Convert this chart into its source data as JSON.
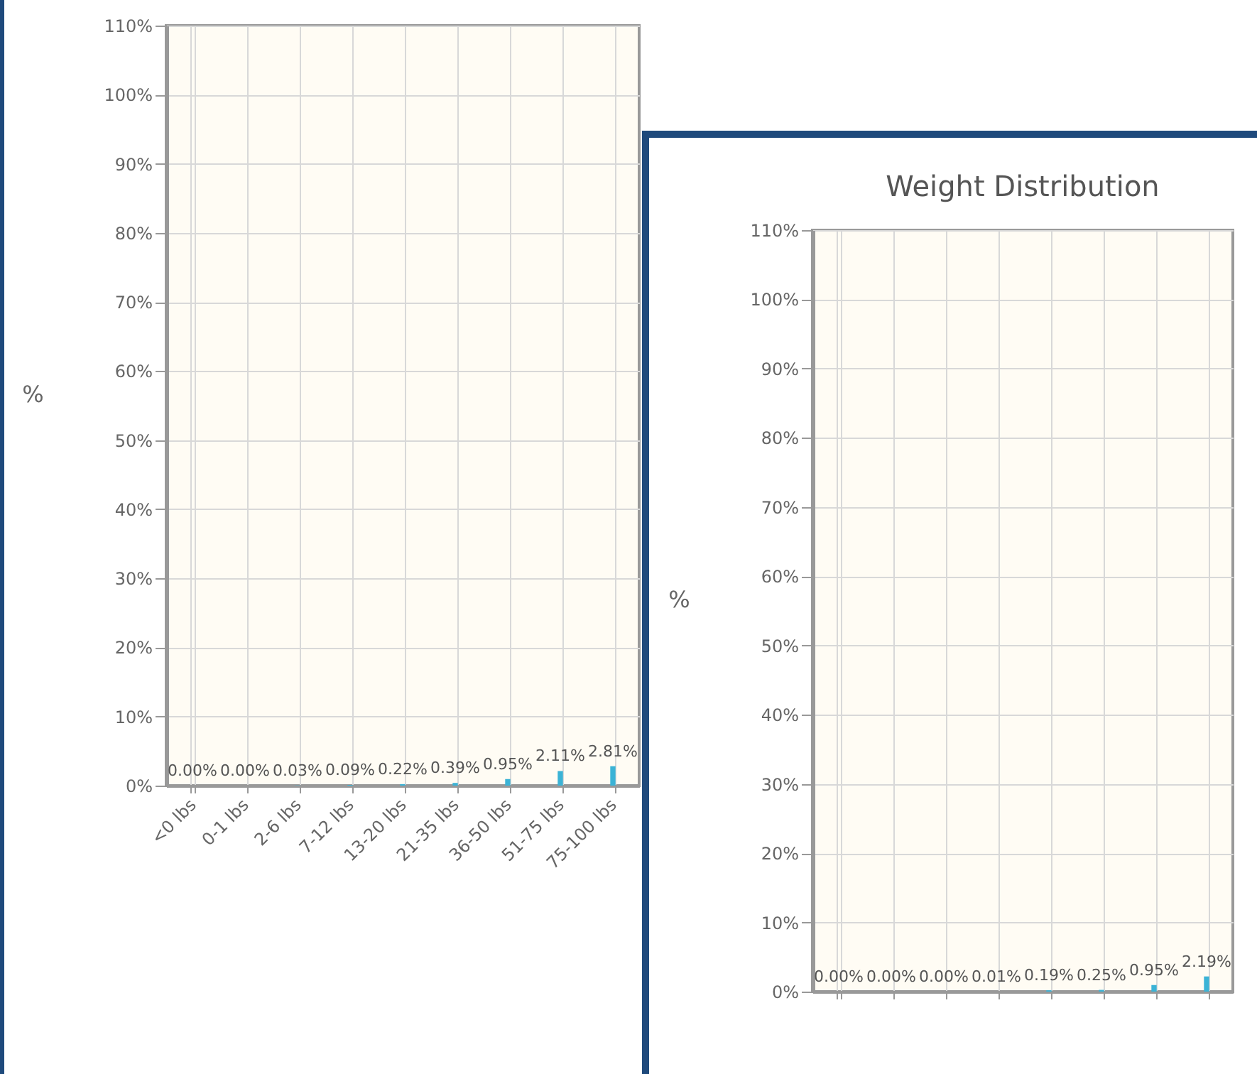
{
  "chart_data": [
    {
      "type": "bar",
      "ylabel": "%",
      "categories": [
        "<0 lbs",
        "0-1 lbs",
        "2-6 lbs",
        "7-12 lbs",
        "13-20 lbs",
        "21-35 lbs",
        "36-50 lbs",
        "51-75 lbs",
        "75-100 lbs"
      ],
      "values": [
        0,
        0,
        0.03,
        0.09,
        0.22,
        0.39,
        0.95,
        2.11,
        2.81
      ],
      "value_labels": [
        "0.00%",
        "0.00%",
        "0.03%",
        "0.09%",
        "0.22%",
        "0.39%",
        "0.95%",
        "2.11%",
        "2.81%"
      ],
      "color": "#3bb3d6",
      "ylim": [
        0,
        110
      ],
      "yticks": [
        {
          "value": 0,
          "label": "0%"
        },
        {
          "value": 10,
          "label": "10%"
        },
        {
          "value": 20,
          "label": "20%"
        },
        {
          "value": 30,
          "label": "30%"
        },
        {
          "value": 40,
          "label": "40%"
        },
        {
          "value": 50,
          "label": "50%"
        },
        {
          "value": 60,
          "label": "60%"
        },
        {
          "value": 70,
          "label": "70%"
        },
        {
          "value": 80,
          "label": "80%"
        },
        {
          "value": 90,
          "label": "90%"
        },
        {
          "value": 100,
          "label": "100%"
        },
        {
          "value": 110,
          "label": "110%"
        }
      ],
      "grid": true
    },
    {
      "type": "bar",
      "title": "Weight Distribution",
      "ylabel": "%",
      "categories": [
        null,
        null,
        null,
        null,
        null,
        null,
        null,
        null
      ],
      "values": [
        0,
        0,
        0,
        0.01,
        0.19,
        0.25,
        0.95,
        2.19
      ],
      "value_labels": [
        "0.00%",
        "0.00%",
        "0.00%",
        "0.01%",
        "0.19%",
        "0.25%",
        "0.95%",
        "2.19%"
      ],
      "color": "#3bb3d6",
      "ylim": [
        0,
        110
      ],
      "yticks": [
        {
          "value": 0,
          "label": "0%"
        },
        {
          "value": 10,
          "label": "10%"
        },
        {
          "value": 20,
          "label": "20%"
        },
        {
          "value": 30,
          "label": "30%"
        },
        {
          "value": 40,
          "label": "40%"
        },
        {
          "value": 50,
          "label": "50%"
        },
        {
          "value": 60,
          "label": "60%"
        },
        {
          "value": 70,
          "label": "70%"
        },
        {
          "value": 80,
          "label": "80%"
        },
        {
          "value": 90,
          "label": "90%"
        },
        {
          "value": 100,
          "label": "100%"
        },
        {
          "value": 110,
          "label": "110%"
        }
      ],
      "grid": true
    }
  ]
}
